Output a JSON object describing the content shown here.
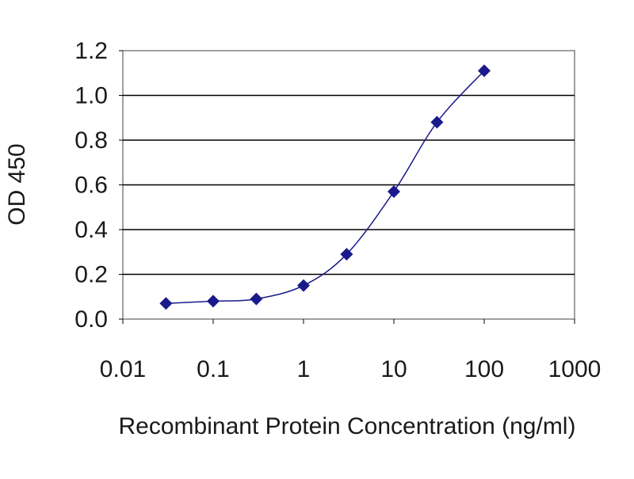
{
  "chart_data": {
    "type": "line",
    "title": "",
    "xlabel": "Recombinant Protein Concentration (ng/ml)",
    "ylabel": "OD 450",
    "x_scale": "log",
    "xlim": [
      0.01,
      1000
    ],
    "ylim": [
      0.0,
      1.2
    ],
    "x_ticks": [
      "0.01",
      "0.1",
      "1",
      "10",
      "100",
      "1000"
    ],
    "x_tick_values": [
      0.01,
      0.1,
      1,
      10,
      100,
      1000
    ],
    "y_ticks": [
      "0.0",
      "0.2",
      "0.4",
      "0.6",
      "0.8",
      "1.0",
      "1.2"
    ],
    "y_tick_values": [
      0.0,
      0.2,
      0.4,
      0.6,
      0.8,
      1.0,
      1.2
    ],
    "grid": "horizontal",
    "legend": "none",
    "series": [
      {
        "x": [
          0.03,
          0.1,
          0.3,
          1,
          3,
          10,
          30,
          100
        ],
        "y": [
          0.07,
          0.08,
          0.09,
          0.15,
          0.29,
          0.57,
          0.88,
          1.11
        ],
        "marker": "diamond",
        "color": "#1a1a8c"
      }
    ],
    "colors": {
      "plot_area": "#ffffff",
      "grid": "#000000",
      "series": "#1a1a8c"
    }
  }
}
